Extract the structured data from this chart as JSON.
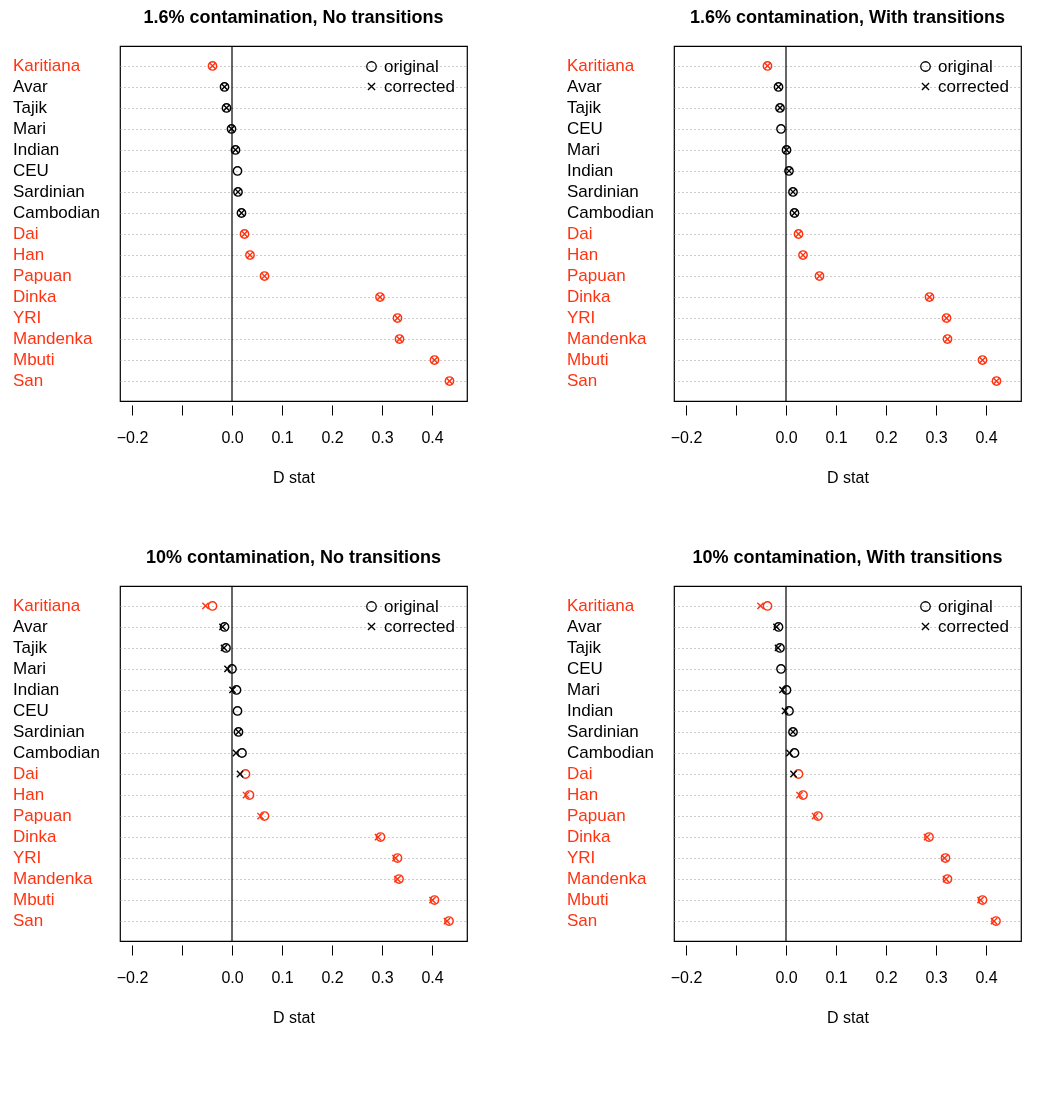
{
  "chart_data": [
    {
      "type": "scatter",
      "orientation": "horizontal",
      "title": "1.6% contamination, No transitions",
      "xlabel": "D stat",
      "categories": [
        "Karitiana",
        "Avar",
        "Tajik",
        "Mari",
        "Indian",
        "CEU",
        "Sardinian",
        "Cambodian",
        "Dai",
        "Han",
        "Papuan",
        "Dinka",
        "YRI",
        "Mandenka",
        "Mbuti",
        "San"
      ],
      "series": [
        {
          "name": "original",
          "marker": "circle",
          "colors": [
            "#ff3311",
            "#000000",
            "#000000",
            "#000000",
            "#000000",
            "#000000",
            "#000000",
            "#000000",
            "#ff3311",
            "#ff3311",
            "#ff3311",
            "#ff3311",
            "#ff3311",
            "#ff3311",
            "#ff3311",
            "#ff3311"
          ],
          "values": [
            -0.039,
            -0.015,
            -0.011,
            -0.001,
            0.007,
            0.011,
            0.012,
            0.019,
            0.025,
            0.036,
            0.065,
            0.296,
            0.331,
            0.335,
            0.405,
            0.435
          ]
        },
        {
          "name": "corrected",
          "marker": "cross",
          "colors": [
            "#ff3311",
            "#000000",
            "#000000",
            "#000000",
            "#000000",
            "#000000",
            "#000000",
            "#000000",
            "#ff3311",
            "#ff3311",
            "#ff3311",
            "#ff3311",
            "#ff3311",
            "#ff3311",
            "#ff3311",
            "#ff3311"
          ],
          "values": [
            -0.039,
            -0.015,
            -0.011,
            -0.001,
            0.007,
            null,
            0.012,
            0.019,
            0.025,
            0.036,
            0.065,
            0.296,
            0.331,
            0.335,
            0.405,
            0.435
          ]
        }
      ],
      "xlim": [
        -0.224,
        0.47
      ],
      "xticks": [
        {
          "value": -0.2,
          "label": "−0.2"
        },
        {
          "value": -0.1,
          "label": null
        },
        {
          "value": 0,
          "label": "0.0"
        },
        0.1,
        0.2,
        0.3,
        0.4
      ],
      "ref_lines": [
        {
          "axis": "x",
          "value": 0
        }
      ],
      "grid": "y",
      "legend": "top right"
    },
    {
      "type": "scatter",
      "orientation": "horizontal",
      "title": "1.6% contamination, With transitions",
      "xlabel": "D stat",
      "categories": [
        "Karitiana",
        "Avar",
        "Tajik",
        "CEU",
        "Mari",
        "Indian",
        "Sardinian",
        "Cambodian",
        "Dai",
        "Han",
        "Papuan",
        "Dinka",
        "YRI",
        "Mandenka",
        "Mbuti",
        "San"
      ],
      "series": [
        {
          "name": "original",
          "marker": "circle",
          "colors": [
            "#ff3311",
            "#000000",
            "#000000",
            "#000000",
            "#000000",
            "#000000",
            "#000000",
            "#000000",
            "#ff3311",
            "#ff3311",
            "#ff3311",
            "#ff3311",
            "#ff3311",
            "#ff3311",
            "#ff3311",
            "#ff3311"
          ],
          "values": [
            -0.037,
            -0.015,
            -0.012,
            -0.01,
            0.001,
            0.006,
            0.014,
            0.017,
            0.025,
            0.034,
            0.067,
            0.287,
            0.321,
            0.323,
            0.393,
            0.421
          ]
        },
        {
          "name": "corrected",
          "marker": "cross",
          "colors": [
            "#ff3311",
            "#000000",
            "#000000",
            "#000000",
            "#000000",
            "#000000",
            "#000000",
            "#000000",
            "#ff3311",
            "#ff3311",
            "#ff3311",
            "#ff3311",
            "#ff3311",
            "#ff3311",
            "#ff3311",
            "#ff3311"
          ],
          "values": [
            -0.037,
            -0.015,
            -0.012,
            null,
            0.001,
            0.006,
            0.014,
            0.017,
            0.025,
            0.034,
            0.067,
            0.287,
            0.321,
            0.323,
            0.393,
            0.421
          ]
        }
      ],
      "xlim": [
        -0.224,
        0.47
      ],
      "xticks": [
        {
          "value": -0.2,
          "label": "−0.2"
        },
        {
          "value": -0.1,
          "label": null
        },
        {
          "value": 0,
          "label": "0.0"
        },
        0.1,
        0.2,
        0.3,
        0.4
      ],
      "ref_lines": [
        {
          "axis": "x",
          "value": 0
        }
      ],
      "grid": "y",
      "legend": "top right"
    },
    {
      "type": "scatter",
      "orientation": "horizontal",
      "title": "10% contamination, No transitions",
      "xlabel": "D stat",
      "categories": [
        "Karitiana",
        "Avar",
        "Tajik",
        "Mari",
        "Indian",
        "CEU",
        "Sardinian",
        "Cambodian",
        "Dai",
        "Han",
        "Papuan",
        "Dinka",
        "YRI",
        "Mandenka",
        "Mbuti",
        "San"
      ],
      "series": [
        {
          "name": "original",
          "marker": "circle",
          "colors": [
            "#ff3311",
            "#000000",
            "#000000",
            "#000000",
            "#000000",
            "#000000",
            "#000000",
            "#000000",
            "#ff3311",
            "#ff3311",
            "#ff3311",
            "#ff3311",
            "#ff3311",
            "#ff3311",
            "#ff3311",
            "#ff3311"
          ],
          "values": [
            -0.039,
            -0.015,
            -0.012,
            0.0,
            0.009,
            0.011,
            0.013,
            0.02,
            0.027,
            0.035,
            0.065,
            0.297,
            0.331,
            0.334,
            0.405,
            0.434
          ]
        },
        {
          "name": "corrected",
          "marker": "cross",
          "colors": [
            "#ff3311",
            "#000000",
            "#000000",
            "#000000",
            "#000000",
            "#000000",
            "#000000",
            "#000000",
            "#000000",
            "#ff3311",
            "#ff3311",
            "#ff3311",
            "#ff3311",
            "#ff3311",
            "#ff3311",
            "#ff3311"
          ],
          "values": [
            -0.053,
            -0.019,
            -0.016,
            -0.009,
            0.001,
            null,
            0.013,
            0.008,
            0.016,
            0.028,
            0.057,
            0.292,
            0.327,
            0.331,
            0.401,
            0.43
          ]
        }
      ],
      "xlim": [
        -0.224,
        0.47
      ],
      "xticks": [
        {
          "value": -0.2,
          "label": "−0.2"
        },
        {
          "value": -0.1,
          "label": null
        },
        {
          "value": 0,
          "label": "0.0"
        },
        0.1,
        0.2,
        0.3,
        0.4
      ],
      "ref_lines": [
        {
          "axis": "x",
          "value": 0
        }
      ],
      "grid": "y",
      "legend": "top right"
    },
    {
      "type": "scatter",
      "orientation": "horizontal",
      "title": "10% contamination, With transitions",
      "xlabel": "D stat",
      "categories": [
        "Karitiana",
        "Avar",
        "Tajik",
        "CEU",
        "Mari",
        "Indian",
        "Sardinian",
        "Cambodian",
        "Dai",
        "Han",
        "Papuan",
        "Dinka",
        "YRI",
        "Mandenka",
        "Mbuti",
        "San"
      ],
      "series": [
        {
          "name": "original",
          "marker": "circle",
          "colors": [
            "#ff3311",
            "#000000",
            "#000000",
            "#000000",
            "#000000",
            "#000000",
            "#000000",
            "#000000",
            "#ff3311",
            "#ff3311",
            "#ff3311",
            "#ff3311",
            "#ff3311",
            "#ff3311",
            "#ff3311",
            "#ff3311"
          ],
          "values": [
            -0.037,
            -0.015,
            -0.012,
            -0.01,
            0.001,
            0.006,
            0.014,
            0.017,
            0.025,
            0.034,
            0.064,
            0.286,
            0.319,
            0.323,
            0.393,
            0.42
          ]
        },
        {
          "name": "corrected",
          "marker": "cross",
          "colors": [
            "#ff3311",
            "#000000",
            "#000000",
            "#000000",
            "#000000",
            "#000000",
            "#000000",
            "#000000",
            "#000000",
            "#ff3311",
            "#ff3311",
            "#ff3311",
            "#ff3311",
            "#ff3311",
            "#ff3311",
            "#ff3311"
          ],
          "values": [
            -0.051,
            -0.019,
            -0.016,
            null,
            -0.007,
            -0.002,
            0.014,
            0.007,
            0.015,
            0.027,
            0.058,
            0.282,
            0.317,
            0.32,
            0.389,
            0.416
          ]
        }
      ],
      "xlim": [
        -0.224,
        0.47
      ],
      "xticks": [
        {
          "value": -0.2,
          "label": "−0.2"
        },
        {
          "value": -0.1,
          "label": null
        },
        {
          "value": 0,
          "label": "0.0"
        },
        0.1,
        0.2,
        0.3,
        0.4
      ],
      "ref_lines": [
        {
          "axis": "x",
          "value": 0
        }
      ],
      "grid": "y",
      "legend": "top right"
    }
  ]
}
